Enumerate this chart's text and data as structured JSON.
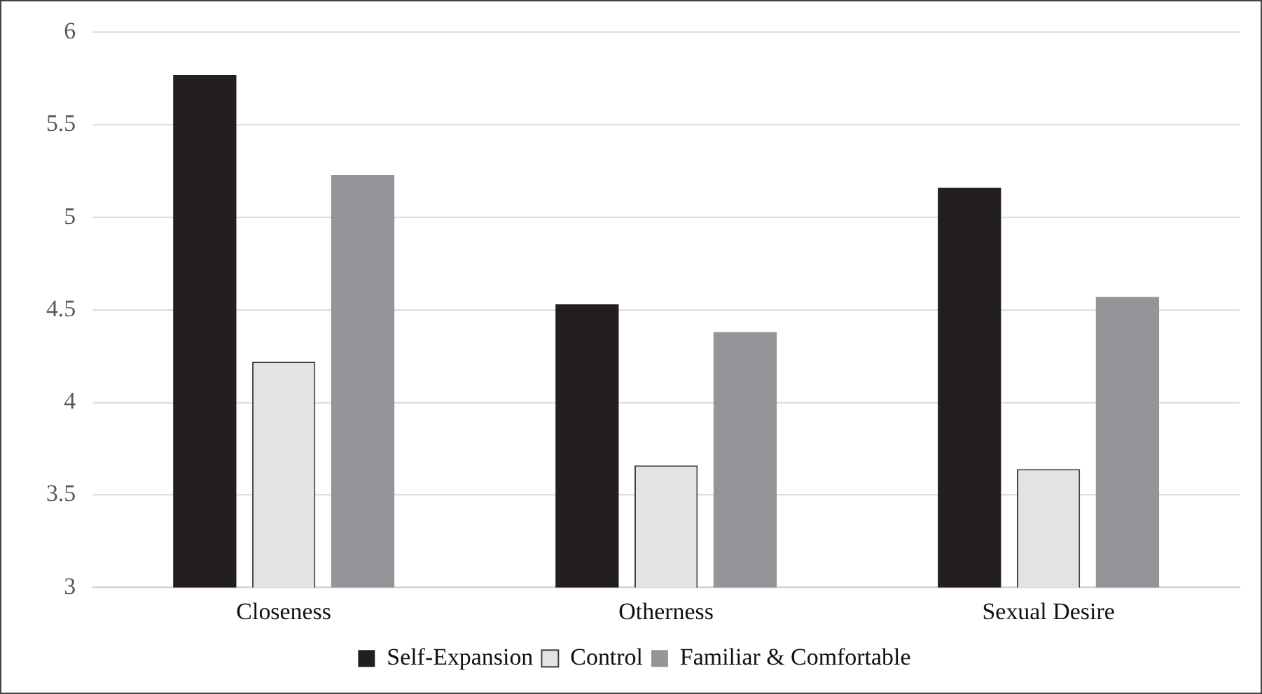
{
  "chart_data": {
    "type": "bar",
    "categories": [
      "Closeness",
      "Otherness",
      "Sexual Desire"
    ],
    "series": [
      {
        "name": "Self-Expansion",
        "color": "#231f20",
        "values": [
          5.77,
          4.53,
          5.16
        ]
      },
      {
        "name": "Control",
        "color": "#e3e3e3",
        "values": [
          4.22,
          3.66,
          3.64
        ]
      },
      {
        "name": "Familiar & Comfortable",
        "color": "#939598",
        "values": [
          5.23,
          4.38,
          4.57
        ]
      }
    ],
    "ylim": [
      3,
      6
    ],
    "yticks": [
      3,
      3.5,
      4,
      4.5,
      5,
      5.5,
      6
    ],
    "grid": "y",
    "legend": "bottom"
  }
}
